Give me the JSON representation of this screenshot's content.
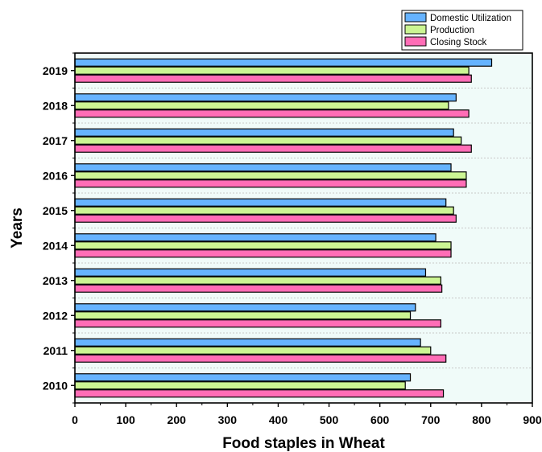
{
  "chart_data": {
    "type": "bar",
    "orientation": "horizontal",
    "xlabel": "Food staples in Wheat",
    "ylabel": "Years",
    "xlim": [
      0,
      900
    ],
    "x_ticks": [
      "0",
      "100",
      "200",
      "300",
      "400",
      "500",
      "600",
      "700",
      "800",
      "900"
    ],
    "grid": "horizontal dotted",
    "legend_position": "top-right",
    "plot_background": "#f0fbf9",
    "categories": [
      "2010",
      "2011",
      "2012",
      "2013",
      "2014",
      "2015",
      "2016",
      "2017",
      "2018",
      "2019"
    ],
    "series": [
      {
        "name": "Domestic Utilization",
        "color": "#66b3ff",
        "values": [
          660,
          680,
          670,
          690,
          710,
          730,
          740,
          745,
          750,
          820
        ]
      },
      {
        "name": "Production",
        "color": "#ccf593",
        "values": [
          650,
          700,
          660,
          720,
          740,
          745,
          770,
          760,
          735,
          775
        ]
      },
      {
        "name": "Closing Stock",
        "color": "#ff6db6",
        "values": [
          725,
          730,
          720,
          722,
          740,
          750,
          770,
          780,
          775,
          780
        ]
      }
    ]
  }
}
